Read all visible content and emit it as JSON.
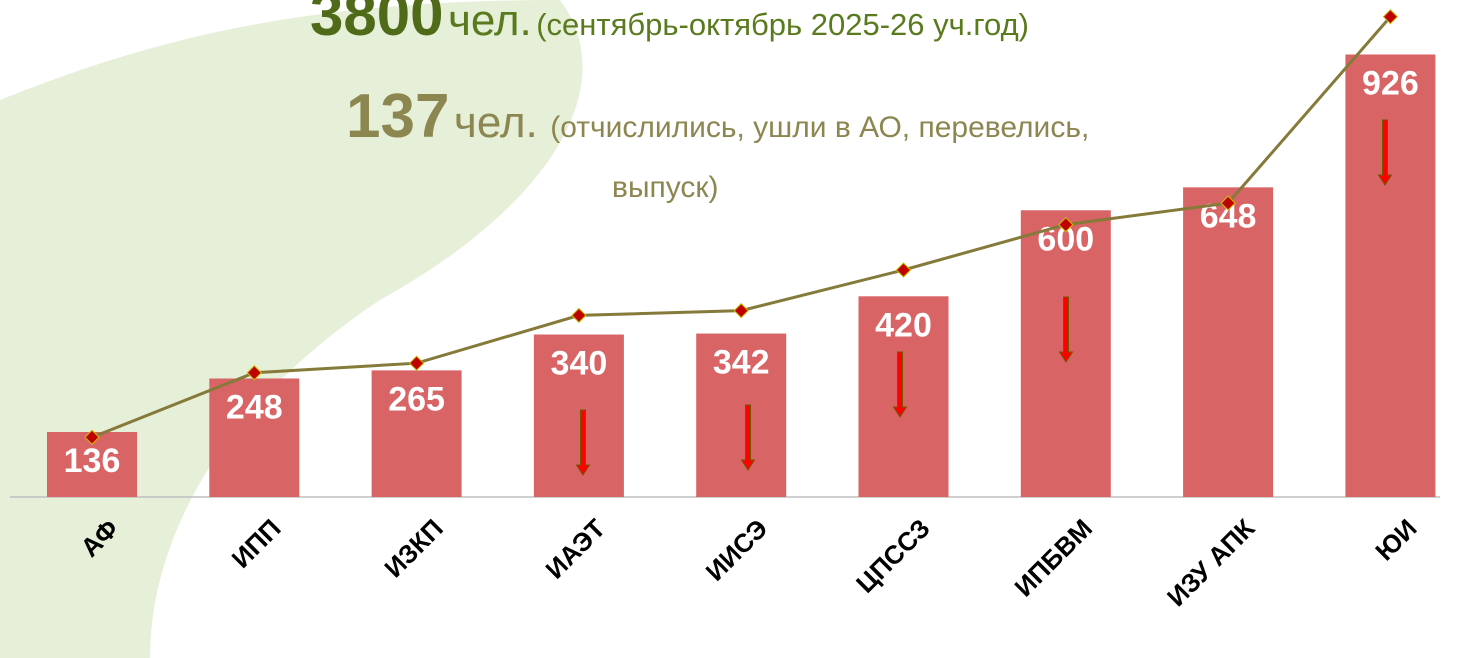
{
  "chart_data": {
    "type": "bar",
    "headline": {
      "number": "3800",
      "unit": "чел.",
      "note": "(сентябрь-октябрь 2025-26 уч.год)"
    },
    "subheadline": {
      "number": "137",
      "unit": "чел.",
      "note": [
        "(отчислились, ушли в АО, перевелись,",
        "выпуск)"
      ]
    },
    "categories": [
      "АФ",
      "ИПП",
      "ИЗКП",
      "ИАЭТ",
      "ИИСЭ",
      "ЦПССЗ",
      "ИПБВМ",
      "ИЗУ  АПК",
      "ЮИ"
    ],
    "values": [
      136,
      248,
      265,
      340,
      342,
      420,
      600,
      648,
      926
    ],
    "color": "#d96466",
    "line_values": [
      125,
      260,
      280,
      380,
      390,
      475,
      570,
      615,
      1005
    ],
    "line_color": "#857a3a",
    "marker_color": "#c00000",
    "ylim": [
      0,
      1040
    ]
  }
}
